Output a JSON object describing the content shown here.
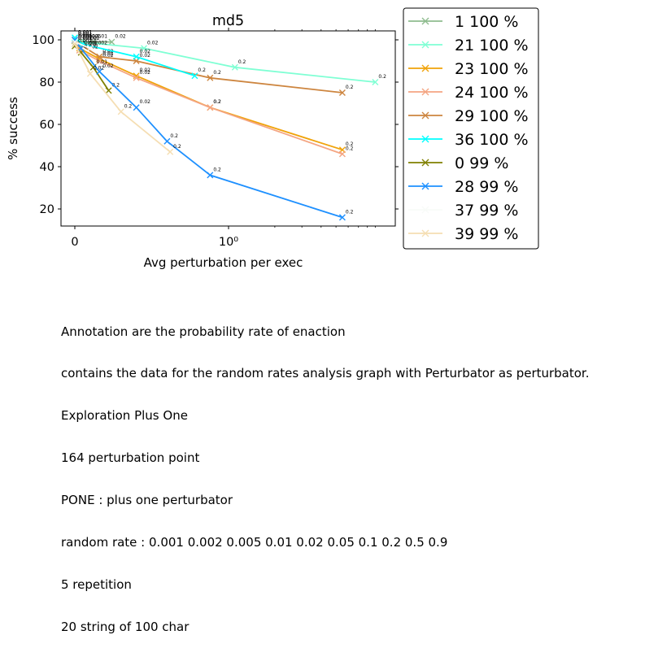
{
  "chart_data": {
    "type": "line",
    "title": "md5",
    "xlabel": "Avg perturbation per exec",
    "ylabel": "% success",
    "xscale": "symlog",
    "xticks": [
      "0",
      "10⁰"
    ],
    "yticks": [
      20,
      40,
      60,
      80,
      100
    ],
    "ylim": [
      12,
      104
    ],
    "grid": false,
    "legend_position": "outside-right",
    "series": [
      {
        "name": "1 100 %",
        "color": "#8fbc8f",
        "points": [
          {
            "x": 0.0,
            "y": 98,
            "label": "0.001"
          },
          {
            "x": 0.02,
            "y": 99,
            "label": "0.002"
          },
          {
            "x": 0.06,
            "y": 99,
            "label": "0.005"
          },
          {
            "x": 0.12,
            "y": 99,
            "label": "0.01"
          },
          {
            "x": 0.24,
            "y": 99,
            "label": "0.02"
          }
        ]
      },
      {
        "name": "21 100 %",
        "color": "#7fffd4",
        "points": [
          {
            "x": 0.0,
            "y": 101,
            "label": "0.001"
          },
          {
            "x": 0.04,
            "y": 99,
            "label": "0.002"
          },
          {
            "x": 0.45,
            "y": 96,
            "label": "0.02"
          },
          {
            "x": 1.1,
            "y": 87,
            "label": "0.2"
          },
          {
            "x": 9.0,
            "y": 80,
            "label": "0.2"
          }
        ]
      },
      {
        "name": "23 100 %",
        "color": "#f0a30a",
        "points": [
          {
            "x": 0.0,
            "y": 99,
            "label": "0.001"
          },
          {
            "x": 0.03,
            "y": 96,
            "label": "0.002"
          },
          {
            "x": 0.16,
            "y": 91,
            "label": "0.02"
          },
          {
            "x": 0.4,
            "y": 83,
            "label": "0.02"
          },
          {
            "x": 0.88,
            "y": 68,
            "label": "0.2"
          },
          {
            "x": 5.5,
            "y": 48,
            "label": "0.2"
          }
        ]
      },
      {
        "name": "24 100 %",
        "color": "#f4a582",
        "points": [
          {
            "x": 0.0,
            "y": 99,
            "label": "0.001"
          },
          {
            "x": 0.03,
            "y": 95,
            "label": "0.002"
          },
          {
            "x": 0.16,
            "y": 90,
            "label": "0.02"
          },
          {
            "x": 0.4,
            "y": 82,
            "label": "0.02"
          },
          {
            "x": 0.88,
            "y": 68,
            "label": "0.2"
          },
          {
            "x": 5.5,
            "y": 46,
            "label": "0.2"
          }
        ]
      },
      {
        "name": "29 100 %",
        "color": "#cd853f",
        "points": [
          {
            "x": 0.0,
            "y": 100,
            "label": "0.001"
          },
          {
            "x": 0.03,
            "y": 98,
            "label": "0.002"
          },
          {
            "x": 0.16,
            "y": 92,
            "label": "0.02"
          },
          {
            "x": 0.4,
            "y": 90,
            "label": "0.02"
          },
          {
            "x": 0.88,
            "y": 82,
            "label": "0.2"
          },
          {
            "x": 5.5,
            "y": 75,
            "label": "0.2"
          }
        ]
      },
      {
        "name": "36 100 %",
        "color": "#00ffff",
        "points": [
          {
            "x": 0.0,
            "y": 101,
            "label": "0.001"
          },
          {
            "x": 0.05,
            "y": 98,
            "label": "0.002"
          },
          {
            "x": 0.4,
            "y": 92,
            "label": "0.02"
          },
          {
            "x": 0.78,
            "y": 83,
            "label": "0.2"
          }
        ]
      },
      {
        "name": "0 99 %",
        "color": "#808000",
        "points": [
          {
            "x": 0.0,
            "y": 97,
            "label": "0.001"
          },
          {
            "x": 0.04,
            "y": 94,
            "label": "0.002"
          },
          {
            "x": 0.12,
            "y": 87,
            "label": "0.01"
          },
          {
            "x": 0.22,
            "y": 76,
            "label": "0.2"
          }
        ]
      },
      {
        "name": "28 99 %",
        "color": "#1e90ff",
        "points": [
          {
            "x": 0.0,
            "y": 100,
            "label": "0.001"
          },
          {
            "x": 0.04,
            "y": 96,
            "label": "0.002"
          },
          {
            "x": 0.16,
            "y": 85,
            "label": "0.02"
          },
          {
            "x": 0.4,
            "y": 68,
            "label": "0.02"
          },
          {
            "x": 0.6,
            "y": 52,
            "label": "0.2"
          },
          {
            "x": 0.88,
            "y": 36,
            "label": "0.2"
          },
          {
            "x": 5.5,
            "y": 16,
            "label": "0.2"
          }
        ]
      },
      {
        "name": "37 99 %",
        "color": "#f8fbf8",
        "points": [
          {
            "x": 0.0,
            "y": 99,
            "label": "0.001"
          },
          {
            "x": 0.1,
            "y": 96,
            "label": "0.002"
          }
        ]
      },
      {
        "name": "39 99 %",
        "color": "#f5deb3",
        "points": [
          {
            "x": 0.0,
            "y": 98,
            "label": "0.001"
          },
          {
            "x": 0.1,
            "y": 84,
            "label": "0.02"
          },
          {
            "x": 0.3,
            "y": 66,
            "label": "0.2"
          },
          {
            "x": 0.62,
            "y": 47,
            "label": "0.2"
          }
        ]
      }
    ]
  },
  "caption": [
    "Annotation are the probability rate of enaction",
    "contains the data for the random rates analysis graph with Perturbator as perturbator.",
    "Exploration Plus One",
    "164 perturbation point",
    "PONE : plus one perturbator",
    "random rate : 0.001 0.002 0.005 0.01 0.02 0.05 0.1 0.2 0.5 0.9",
    "5 repetition",
    "20 string of 100 char"
  ]
}
